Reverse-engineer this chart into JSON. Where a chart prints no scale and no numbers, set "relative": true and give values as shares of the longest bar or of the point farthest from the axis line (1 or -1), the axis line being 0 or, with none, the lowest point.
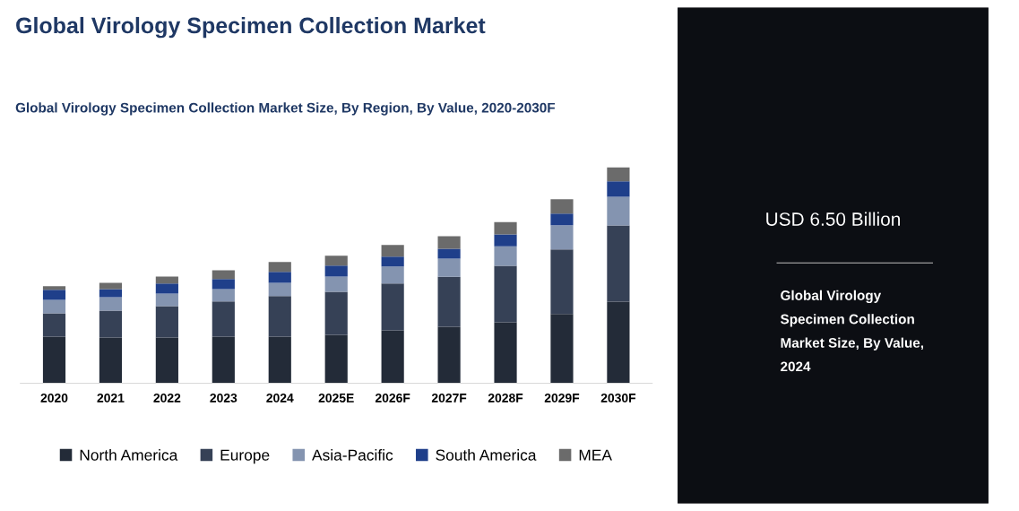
{
  "chart_data": [
    {
      "type": "bar",
      "title": "Global Virology Specimen Collection Market",
      "subtitle": "Global Virology Specimen Collection Market Size, By Region, By Value, 2020-2030F",
      "relative": true,
      "stacked": true,
      "legend": "bottom",
      "grid": false,
      "categories": [
        "2020",
        "2021",
        "2022",
        "2023",
        "2024",
        "2025E",
        "2026F",
        "2027F",
        "2028F",
        "2029F",
        "2030F"
      ],
      "series": [
        {
          "name": "North America",
          "color": "#232b38",
          "values": [
            0.216,
            0.212,
            0.212,
            0.216,
            0.216,
            0.224,
            0.245,
            0.261,
            0.282,
            0.32,
            0.377
          ]
        },
        {
          "name": "Europe",
          "color": "#364156",
          "values": [
            0.108,
            0.124,
            0.145,
            0.162,
            0.187,
            0.199,
            0.216,
            0.232,
            0.261,
            0.299,
            0.353
          ]
        },
        {
          "name": "Asia-Pacific",
          "color": "#8494b0",
          "values": [
            0.062,
            0.062,
            0.058,
            0.058,
            0.062,
            0.071,
            0.079,
            0.083,
            0.091,
            0.112,
            0.133
          ]
        },
        {
          "name": "South America",
          "color": "#1f3f8a",
          "values": [
            0.046,
            0.037,
            0.046,
            0.046,
            0.05,
            0.05,
            0.046,
            0.046,
            0.054,
            0.054,
            0.071
          ]
        },
        {
          "name": "MEA",
          "color": "#6b6b6b",
          "values": [
            0.017,
            0.029,
            0.033,
            0.041,
            0.046,
            0.046,
            0.054,
            0.058,
            0.058,
            0.066,
            0.066
          ]
        }
      ]
    },
    {
      "type": "other",
      "title": "USD 6.50 Billion",
      "subtitle": "Global Virology\nSpecimen Collection\nMarket Size, By Value,\n2024"
    }
  ]
}
